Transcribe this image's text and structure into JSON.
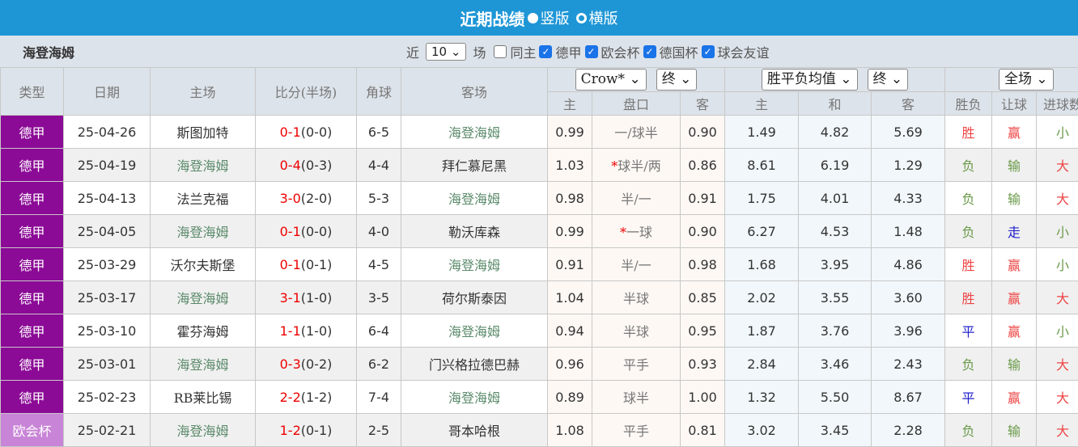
{
  "header": {
    "title": "近期战绩",
    "option_vertical": "竖版",
    "option_horizontal": "横版"
  },
  "filter": {
    "team": "海登海姆",
    "near_label": "近",
    "count": "10",
    "count_unit": "场",
    "same_home": "同主",
    "leagues": [
      {
        "label": "德甲",
        "checked": true
      },
      {
        "label": "欧会杯",
        "checked": true
      },
      {
        "label": "德国杯",
        "checked": true
      },
      {
        "label": "球会友谊",
        "checked": true
      }
    ]
  },
  "columns": {
    "type": "类型",
    "date": "日期",
    "home": "主场",
    "score": "比分(半场)",
    "corner": "角球",
    "away": "客场",
    "ah_company": "Crow*",
    "ah_time": "终",
    "eu_type": "胜平负均值",
    "eu_time": "终",
    "period": "全场",
    "ah_home": "主",
    "ah_line": "盘口",
    "ah_away": "客",
    "eu_home": "主",
    "eu_draw": "和",
    "eu_away": "客",
    "result": "胜负",
    "handicap": "让球",
    "goals": "进球数"
  },
  "colors": {
    "league": "#8b0a96",
    "cup": "#c884d6",
    "header": "#1e96d6"
  },
  "rows": [
    {
      "type": "德甲",
      "date": "25-04-26",
      "home": "斯图加特",
      "ft": "0-1",
      "ht": "(0-0)",
      "corner": "6-5",
      "away": "海登海姆",
      "ah_h": "0.99",
      "star": "",
      "line": "一/球半",
      "ah_a": "0.90",
      "eh": "1.49",
      "ed": "4.82",
      "ea": "5.69",
      "res": "胜",
      "hc": "赢",
      "goals": "小"
    },
    {
      "type": "德甲",
      "date": "25-04-19",
      "home": "海登海姆",
      "ft": "0-4",
      "ht": "(0-3)",
      "corner": "4-4",
      "away": "拜仁慕尼黑",
      "ah_h": "1.03",
      "star": "*",
      "line": "球半/两",
      "ah_a": "0.86",
      "eh": "8.61",
      "ed": "6.19",
      "ea": "1.29",
      "res": "负",
      "hc": "输",
      "goals": "大"
    },
    {
      "type": "德甲",
      "date": "25-04-13",
      "home": "法兰克福",
      "ft": "3-0",
      "ht": "(2-0)",
      "corner": "5-3",
      "away": "海登海姆",
      "ah_h": "0.98",
      "star": "",
      "line": "半/一",
      "ah_a": "0.91",
      "eh": "1.75",
      "ed": "4.01",
      "ea": "4.33",
      "res": "负",
      "hc": "输",
      "goals": "大"
    },
    {
      "type": "德甲",
      "date": "25-04-05",
      "home": "海登海姆",
      "ft": "0-1",
      "ht": "(0-0)",
      "corner": "4-0",
      "away": "勒沃库森",
      "ah_h": "0.99",
      "star": "*",
      "line": "一球",
      "ah_a": "0.90",
      "eh": "6.27",
      "ed": "4.53",
      "ea": "1.48",
      "res": "负",
      "hc": "走",
      "goals": "小"
    },
    {
      "type": "德甲",
      "date": "25-03-29",
      "home": "沃尔夫斯堡",
      "ft": "0-1",
      "ht": "(0-1)",
      "corner": "4-5",
      "away": "海登海姆",
      "ah_h": "0.91",
      "star": "",
      "line": "半/一",
      "ah_a": "0.98",
      "eh": "1.68",
      "ed": "3.95",
      "ea": "4.86",
      "res": "胜",
      "hc": "赢",
      "goals": "小"
    },
    {
      "type": "德甲",
      "date": "25-03-17",
      "home": "海登海姆",
      "ft": "3-1",
      "ht": "(1-0)",
      "corner": "3-5",
      "away": "荷尔斯泰因",
      "ah_h": "1.04",
      "star": "",
      "line": "半球",
      "ah_a": "0.85",
      "eh": "2.02",
      "ed": "3.55",
      "ea": "3.60",
      "res": "胜",
      "hc": "赢",
      "goals": "大"
    },
    {
      "type": "德甲",
      "date": "25-03-10",
      "home": "霍芬海姆",
      "ft": "1-1",
      "ht": "(1-0)",
      "corner": "6-4",
      "away": "海登海姆",
      "ah_h": "0.94",
      "star": "",
      "line": "半球",
      "ah_a": "0.95",
      "eh": "1.87",
      "ed": "3.76",
      "ea": "3.96",
      "res": "平",
      "hc": "赢",
      "goals": "小"
    },
    {
      "type": "德甲",
      "date": "25-03-01",
      "home": "海登海姆",
      "ft": "0-3",
      "ht": "(0-2)",
      "corner": "6-2",
      "away": "门兴格拉德巴赫",
      "ah_h": "0.96",
      "star": "",
      "line": "平手",
      "ah_a": "0.93",
      "eh": "2.84",
      "ed": "3.46",
      "ea": "2.43",
      "res": "负",
      "hc": "输",
      "goals": "大"
    },
    {
      "type": "德甲",
      "date": "25-02-23",
      "home": "RB莱比锡",
      "ft": "2-2",
      "ht": "(1-2)",
      "corner": "7-4",
      "away": "海登海姆",
      "ah_h": "0.89",
      "star": "",
      "line": "球半",
      "ah_a": "1.00",
      "eh": "1.32",
      "ed": "5.50",
      "ea": "8.67",
      "res": "平",
      "hc": "赢",
      "goals": "大"
    },
    {
      "type": "欧会杯",
      "date": "25-02-21",
      "home": "海登海姆",
      "ft": "1-2",
      "ht": "(0-1)",
      "corner": "2-5",
      "away": "哥本哈根",
      "ah_h": "1.08",
      "star": "",
      "line": "平手",
      "ah_a": "0.81",
      "eh": "3.02",
      "ed": "3.45",
      "ea": "2.28",
      "res": "负",
      "hc": "输",
      "goals": "大"
    }
  ]
}
